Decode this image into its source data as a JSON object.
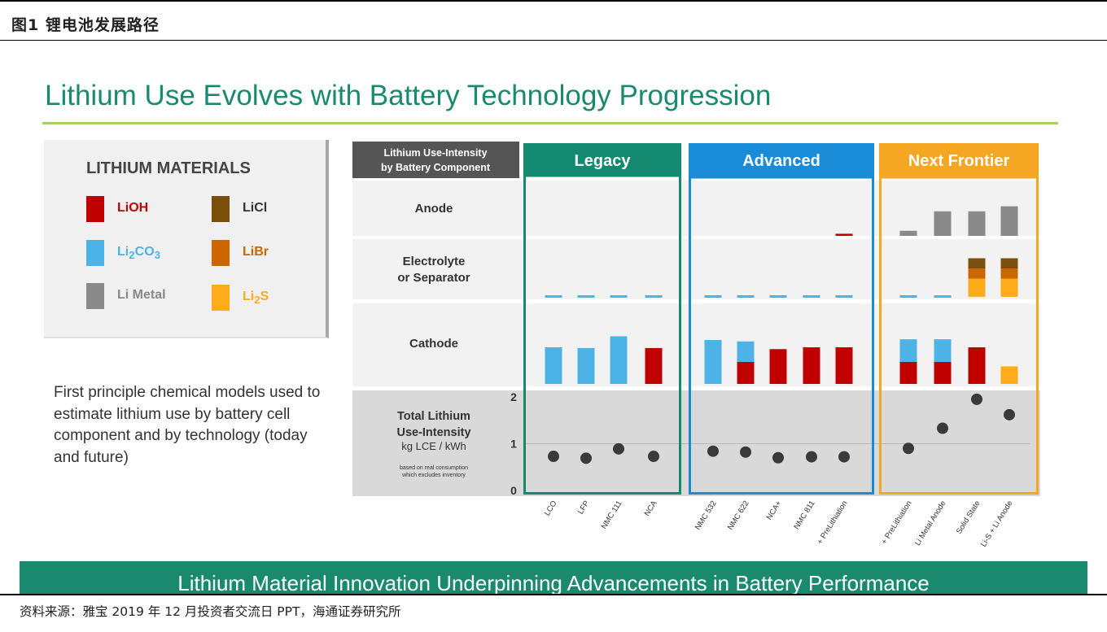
{
  "figure_label": "图1  锂电池发展路径",
  "slide_title": "Lithium Use Evolves with Battery Technology Progression",
  "legend": {
    "title": "LITHIUM MATERIALS",
    "items": [
      {
        "base": "LiOH",
        "sub": "",
        "tail": "",
        "color": "#c00000",
        "text_color": "#c00000"
      },
      {
        "base": "LiCl",
        "sub": "",
        "tail": "",
        "color": "#7a4f0c",
        "text_color": "#333333"
      },
      {
        "base": "Li",
        "sub": "2",
        "tail": "CO",
        "sub2": "3",
        "color": "#4db3e6",
        "text_color": "#4db3e6"
      },
      {
        "base": "LiBr",
        "sub": "",
        "tail": "",
        "color": "#cc6600",
        "text_color": "#cc6600"
      },
      {
        "base": "Li Metal",
        "sub": "",
        "tail": "",
        "color": "#8a8a8a",
        "text_color": "#888888"
      },
      {
        "base": "Li",
        "sub": "2",
        "tail": "S",
        "color": "#ffab1a",
        "text_color": "#ffab1a"
      }
    ]
  },
  "description": "First principle chemical models used to estimate lithium use by battery cell component and by technology (today and future)",
  "banner_text": "Lithium Material Innovation Underpinning Advancements in Battery Performance",
  "source_text": "资料来源：雅宝 2019 年 12 月投资者交流日 PPT，海通证券研究所",
  "chart_data": {
    "type": "stacked-bar-and-dot-panel",
    "header_label": [
      "Lithium Use-Intensity",
      "by Battery Component"
    ],
    "row_labels": {
      "anode": [
        "Anode"
      ],
      "electrolyte": [
        "Electrolyte",
        "or Separator"
      ],
      "cathode": [
        "Cathode"
      ]
    },
    "total_label": {
      "lines": [
        "Total Lithium",
        "Use-Intensity"
      ],
      "unit": "kg LCE / kWh",
      "note": [
        "based on real consumption",
        "which excludes inventory"
      ]
    },
    "total_axis": {
      "ylim": [
        0,
        2
      ],
      "ticks": [
        "0",
        "1",
        "2"
      ]
    },
    "component_max": 1.0,
    "materials": {
      "LiOH": "#c00000",
      "Li2CO3": "#4db3e6",
      "LiMetal": "#8a8a8a",
      "LiCl": "#7a4f0c",
      "LiBr": "#cc6600",
      "Li2S": "#ffab1a"
    },
    "groups": [
      {
        "name": "Legacy",
        "color": "#138a6f",
        "categories": [
          {
            "name": "LCO",
            "total": 0.73,
            "anode": [],
            "electrolyte": [
              [
                "Li2CO3",
                0.04
              ]
            ],
            "cathode": [
              [
                "Li2CO3",
                1.0
              ]
            ]
          },
          {
            "name": "LFP",
            "total": 0.69,
            "anode": [],
            "electrolyte": [
              [
                "Li2CO3",
                0.04
              ]
            ],
            "cathode": [
              [
                "Li2CO3",
                0.98
              ]
            ]
          },
          {
            "name": "NMC 111",
            "total": 0.89,
            "anode": [],
            "electrolyte": [
              [
                "Li2CO3",
                0.04
              ]
            ],
            "cathode": [
              [
                "Li2CO3",
                1.3
              ]
            ]
          },
          {
            "name": "NCA",
            "total": 0.73,
            "anode": [],
            "electrolyte": [
              [
                "Li2CO3",
                0.04
              ]
            ],
            "cathode": [
              [
                "LiOH",
                0.98
              ]
            ]
          }
        ]
      },
      {
        "name": "Advanced",
        "color": "#1a8bd6",
        "categories": [
          {
            "name": "NMC 532",
            "total": 0.84,
            "anode": [],
            "electrolyte": [
              [
                "Li2CO3",
                0.04
              ]
            ],
            "cathode": [
              [
                "Li2CO3",
                1.2
              ]
            ]
          },
          {
            "name": "NMC 622",
            "total": 0.82,
            "anode": [],
            "electrolyte": [
              [
                "Li2CO3",
                0.04
              ]
            ],
            "cathode": [
              [
                "LiOH",
                0.6
              ],
              [
                "Li2CO3",
                0.56
              ]
            ]
          },
          {
            "name": "NCA+",
            "total": 0.7,
            "anode": [],
            "electrolyte": [
              [
                "Li2CO3",
                0.04
              ]
            ],
            "cathode": [
              [
                "LiOH",
                0.95
              ]
            ]
          },
          {
            "name": "NMC 811",
            "total": 0.72,
            "anode": [],
            "electrolyte": [
              [
                "Li2CO3",
                0.04
              ]
            ],
            "cathode": [
              [
                "LiOH",
                1.0
              ]
            ]
          },
          {
            "name": "+ PreLithiation",
            "total": 0.72,
            "anode": [
              [
                "LiOH",
                0.05
              ]
            ],
            "electrolyte": [
              [
                "Li2CO3",
                0.04
              ]
            ],
            "cathode": [
              [
                "LiOH",
                1.0
              ]
            ]
          }
        ]
      },
      {
        "name": "Next Frontier",
        "color": "#f5a623",
        "categories": [
          {
            "name": "+ PreLithiation",
            "total": 0.9,
            "anode": [
              [
                "LiMetal",
                0.12
              ]
            ],
            "electrolyte": [
              [
                "Li2CO3",
                0.04
              ]
            ],
            "cathode": [
              [
                "LiOH",
                0.6
              ],
              [
                "Li2CO3",
                0.62
              ]
            ]
          },
          {
            "name": "Li Metal Anode",
            "total": 1.33,
            "anode": [
              [
                "LiMetal",
                0.58
              ]
            ],
            "electrolyte": [
              [
                "Li2CO3",
                0.04
              ]
            ],
            "cathode": [
              [
                "LiOH",
                0.6
              ],
              [
                "Li2CO3",
                0.62
              ]
            ]
          },
          {
            "name": "Solid State",
            "total": 1.95,
            "anode": [
              [
                "LiMetal",
                0.58
              ]
            ],
            "electrolyte": [
              [
                "Li2S",
                0.45
              ],
              [
                "LiBr",
                0.25
              ],
              [
                "LiCl",
                0.25
              ]
            ],
            "cathode": [
              [
                "LiOH",
                1.0
              ]
            ]
          },
          {
            "name": "Li-S + Li Anode",
            "total": 1.62,
            "anode": [
              [
                "LiMetal",
                0.7
              ]
            ],
            "electrolyte": [
              [
                "Li2S",
                0.45
              ],
              [
                "LiBr",
                0.25
              ],
              [
                "LiCl",
                0.25
              ]
            ],
            "cathode": [
              [
                "Li2S",
                0.48
              ]
            ]
          }
        ]
      }
    ]
  }
}
